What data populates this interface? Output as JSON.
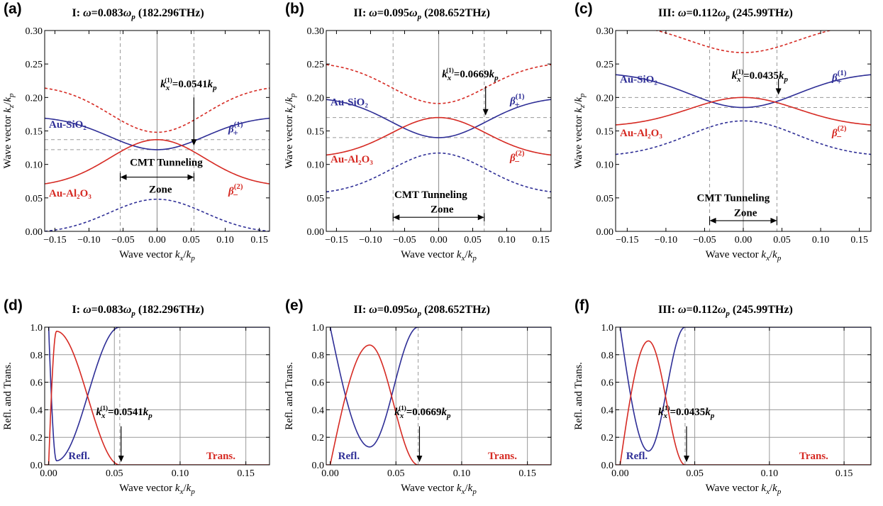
{
  "colors": {
    "blue": "#2e2e96",
    "red": "#d62a23",
    "grid": "#9a9a9a",
    "dash": "#9a9a9a"
  },
  "panels": [
    {
      "label": "(a)",
      "roman": "I:",
      "ratio": "0.083",
      "freq": "(182.296THz)"
    },
    {
      "label": "(b)",
      "roman": "II:",
      "ratio": "0.095",
      "freq": "(208.652THz)"
    },
    {
      "label": "(c)",
      "roman": "III:",
      "ratio": "0.112",
      "freq": "(245.99THz)"
    },
    {
      "label": "(d)",
      "roman": "I:",
      "ratio": "0.083",
      "freq": "(182.296THz)"
    },
    {
      "label": "(e)",
      "roman": "II:",
      "ratio": "0.095",
      "freq": "(208.652THz)"
    },
    {
      "label": "(f)",
      "roman": "III:",
      "ratio": "0.112",
      "freq": "(245.99THz)"
    }
  ],
  "labels": {
    "au_sio2": "Au-SiO₂",
    "au_al2o3": "Au-Al₂O₃",
    "beta_plus": "β₊⁽¹⁾",
    "beta_minus": "β₋⁽²⁾",
    "cmt1": "CMT Tunneling",
    "cmt2": "Zone",
    "refl": "Refl.",
    "trans": "Trans.",
    "kx_sym": "kₓ⁽¹⁾"
  },
  "chart_data": [
    {
      "type": "line",
      "panel": "a",
      "xlabel": "Wave vector kx/kp",
      "ylabel": "Wave vector kz/kp",
      "xlim": [
        -0.165,
        0.165
      ],
      "ylim": [
        0,
        0.3
      ],
      "xticks": [
        "−0.15",
        "−0.10",
        "−0.05",
        "0.00",
        "0.05",
        "0.10",
        "0.15"
      ],
      "yticks": [
        "0.00",
        "0.05",
        "0.10",
        "0.15",
        "0.20",
        "0.25",
        "0.30"
      ],
      "kx1": 0.0541,
      "kx1_label": "=0.0541kp",
      "series": [
        {
          "name": "Au-SiO2 (β+)",
          "color": "blue",
          "style": "solid",
          "center": 0.122,
          "edge": 0.169
        },
        {
          "name": "Au-Al2O3 (β−)",
          "color": "red",
          "style": "solid",
          "center": 0.137,
          "edge": 0.071
        },
        {
          "color": "red",
          "style": "dashed",
          "center": 0.148,
          "edge": 0.214
        },
        {
          "color": "blue",
          "style": "dashed",
          "center": 0.048,
          "edge": 0.0
        }
      ],
      "hlines": [
        0.122,
        0.137
      ]
    },
    {
      "type": "line",
      "panel": "b",
      "xlabel": "Wave vector kx/kp",
      "ylabel": "Wave vector kz/kp",
      "xlim": [
        -0.165,
        0.165
      ],
      "ylim": [
        0,
        0.3
      ],
      "xticks": [
        "−0.15",
        "−0.10",
        "−0.05",
        "0.00",
        "0.05",
        "0.10",
        "0.15"
      ],
      "yticks": [
        "0.00",
        "0.05",
        "0.10",
        "0.15",
        "0.20",
        "0.25",
        "0.30"
      ],
      "kx1": 0.0669,
      "kx1_label": "=0.0669kp",
      "series": [
        {
          "name": "Au-SiO2 (β+)",
          "color": "blue",
          "style": "solid",
          "center": 0.14,
          "edge": 0.197
        },
        {
          "name": "Au-Al2O3 (β−)",
          "color": "red",
          "style": "solid",
          "center": 0.17,
          "edge": 0.114
        },
        {
          "color": "red",
          "style": "dashed",
          "center": 0.191,
          "edge": 0.249
        },
        {
          "color": "blue",
          "style": "dashed",
          "center": 0.117,
          "edge": 0.059
        }
      ],
      "hlines": [
        0.14,
        0.17
      ]
    },
    {
      "type": "line",
      "panel": "c",
      "xlabel": "Wave vector kx/kp",
      "ylabel": "Wave vector kz/kp",
      "xlim": [
        -0.165,
        0.165
      ],
      "ylim": [
        0,
        0.3
      ],
      "xticks": [
        "−0.15",
        "−0.10",
        "−0.05",
        "0.00",
        "0.05",
        "0.10",
        "0.15"
      ],
      "yticks": [
        "0.00",
        "0.05",
        "0.10",
        "0.15",
        "0.20",
        "0.25",
        "0.30"
      ],
      "kx1": 0.0435,
      "kx1_label": "=0.0435kp",
      "series": [
        {
          "name": "Au-SiO2 (β+)",
          "color": "blue",
          "style": "solid",
          "center": 0.185,
          "edge": 0.234
        },
        {
          "name": "Au-Al2O3 (β−)",
          "color": "red",
          "style": "solid",
          "center": 0.2,
          "edge": 0.159
        },
        {
          "color": "red",
          "style": "dashed",
          "center": 0.267,
          "edge": 0.31
        },
        {
          "color": "blue",
          "style": "dashed",
          "center": 0.165,
          "edge": 0.115
        }
      ],
      "hlines": [
        0.185,
        0.2
      ]
    },
    {
      "type": "line",
      "panel": "d",
      "xlabel": "Wave vector kx/kp",
      "ylabel": "Refl. and Trans.",
      "xlim": [
        -0.003,
        0.168
      ],
      "ylim": [
        0,
        1.0
      ],
      "xticks": [
        "0.00",
        "0.05",
        "0.10",
        "0.15"
      ],
      "yticks": [
        "0.0",
        "0.2",
        "0.4",
        "0.6",
        "0.8",
        "1.0"
      ],
      "kx1": 0.0541,
      "kx1_label": "=0.0541kp",
      "series": [
        {
          "name": "Refl.",
          "color": "blue",
          "min_x": 0.006,
          "min_y": 0.03
        },
        {
          "name": "Trans.",
          "color": "red",
          "peak_x": 0.006,
          "peak_y": 0.97
        }
      ]
    },
    {
      "type": "line",
      "panel": "e",
      "xlabel": "Wave vector kx/kp",
      "ylabel": "Refl. and Trans.",
      "xlim": [
        -0.003,
        0.168
      ],
      "ylim": [
        0,
        1.0
      ],
      "xticks": [
        "0.00",
        "0.05",
        "0.10",
        "0.15"
      ],
      "yticks": [
        "0.0",
        "0.2",
        "0.4",
        "0.6",
        "0.8",
        "1.0"
      ],
      "kx1": 0.0669,
      "kx1_label": "=0.0669kp",
      "series": [
        {
          "name": "Refl.",
          "color": "blue",
          "min_x": 0.03,
          "min_y": 0.13
        },
        {
          "name": "Trans.",
          "color": "red",
          "peak_x": 0.03,
          "peak_y": 0.87
        }
      ]
    },
    {
      "type": "line",
      "panel": "f",
      "xlabel": "Wave vector kx/kp",
      "ylabel": "Refl. and Trans.",
      "xlim": [
        -0.003,
        0.168
      ],
      "ylim": [
        0,
        1.0
      ],
      "xticks": [
        "0.00",
        "0.05",
        "0.10",
        "0.15"
      ],
      "yticks": [
        "0.0",
        "0.2",
        "0.4",
        "0.6",
        "0.8",
        "1.0"
      ],
      "kx1": 0.0435,
      "kx1_label": "=0.0435kp",
      "series": [
        {
          "name": "Refl.",
          "color": "blue",
          "min_x": 0.019,
          "min_y": 0.1
        },
        {
          "name": "Trans.",
          "color": "red",
          "peak_x": 0.019,
          "peak_y": 0.9
        }
      ]
    }
  ]
}
